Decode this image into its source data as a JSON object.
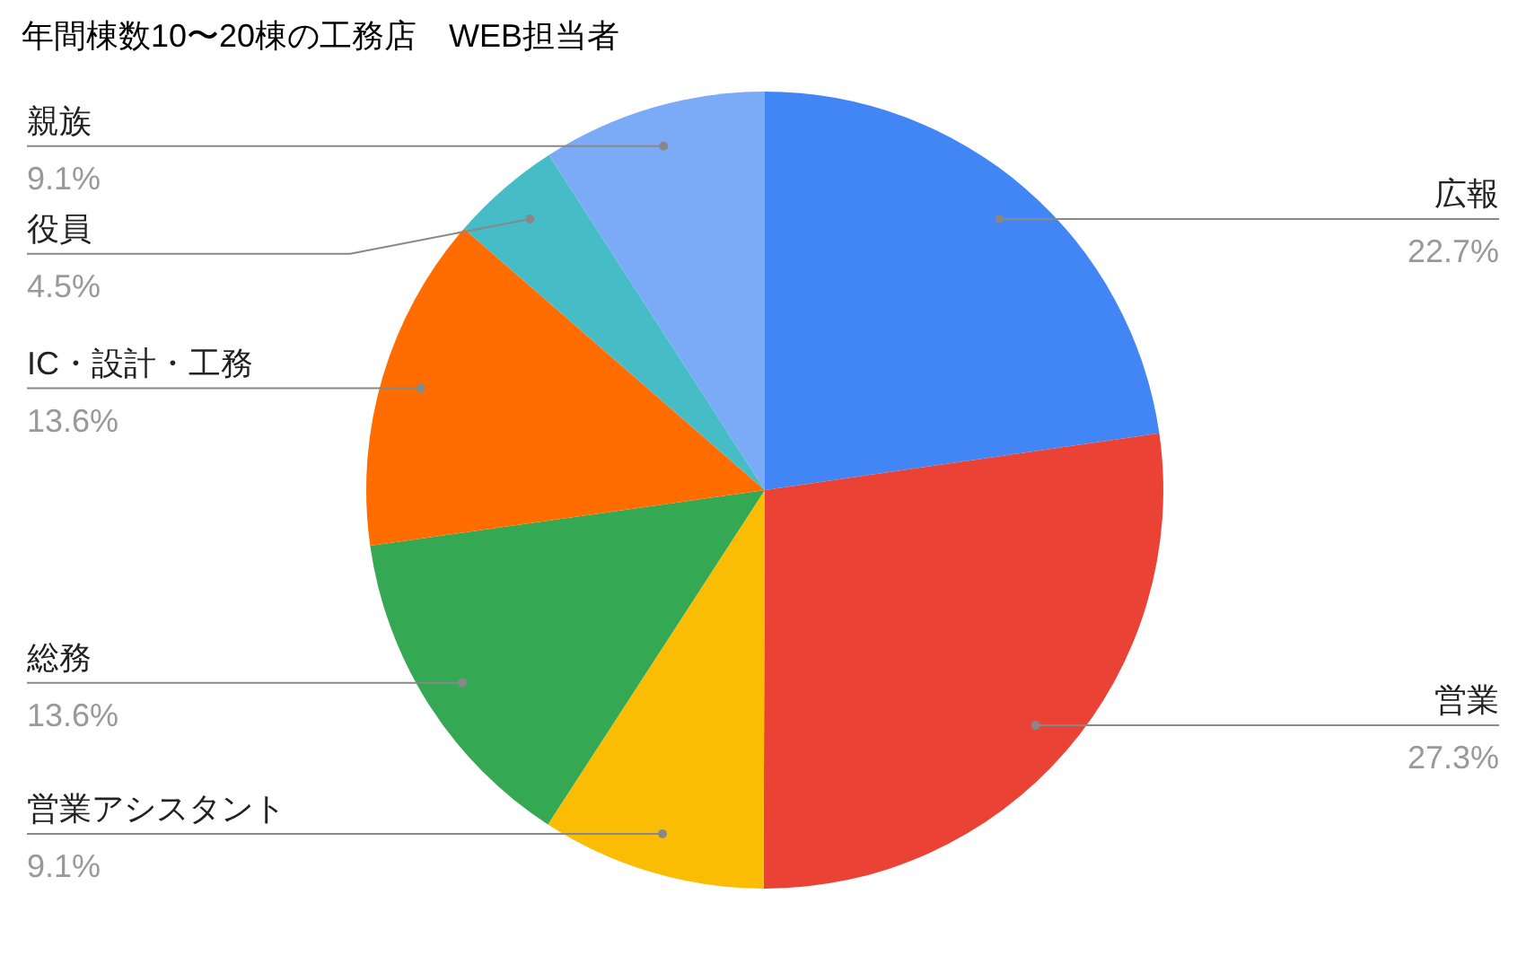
{
  "chart_data": {
    "type": "pie",
    "title": "年間棟数10〜20棟の工務店　WEB担当者",
    "categories": [
      "広報",
      "営業",
      "営業アシスタント",
      "総務",
      "IC・設計・工務",
      "役員",
      "親族"
    ],
    "values": [
      22.7,
      27.3,
      9.1,
      13.6,
      13.6,
      4.5,
      9.1
    ],
    "value_labels": [
      "22.7%",
      "27.3%",
      "9.1%",
      "13.6%",
      "13.6%",
      "4.5%",
      "9.1%"
    ],
    "colors": [
      "#4285f4",
      "#ea4335",
      "#fbbc04",
      "#34a853",
      "#ff6d01",
      "#46bdc6",
      "#7baaf7"
    ]
  }
}
